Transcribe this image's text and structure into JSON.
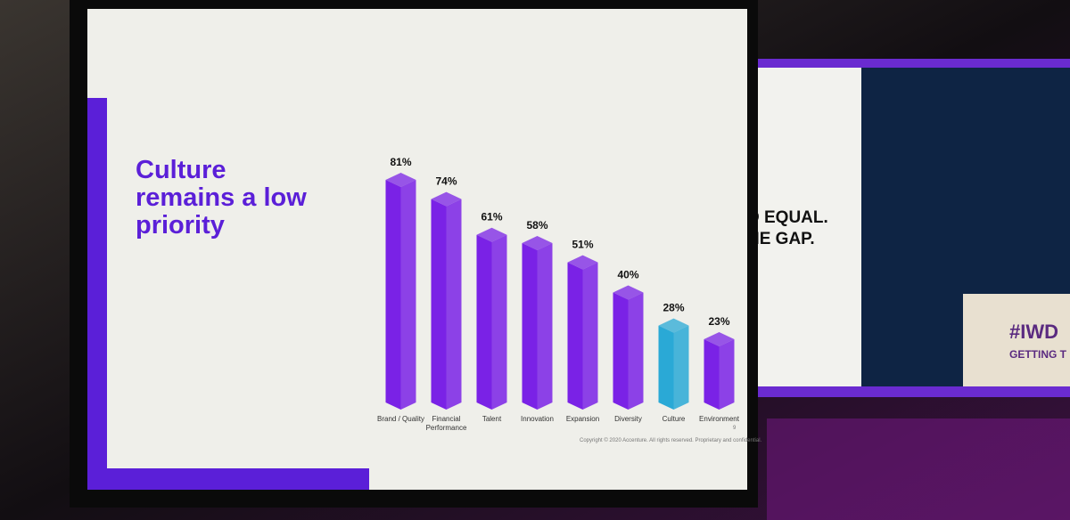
{
  "chart_data": {
    "type": "bar",
    "title": "Culture remains a low priority",
    "categories": [
      "Brand / Quality",
      "Financial Performance",
      "Talent",
      "Innovation",
      "Expansion",
      "Diversity",
      "Culture",
      "Environment"
    ],
    "values": [
      81,
      74,
      61,
      58,
      51,
      40,
      28,
      23
    ],
    "value_labels": [
      "81%",
      "74%",
      "61%",
      "58%",
      "51%",
      "40%",
      "28%",
      "23%"
    ],
    "colors": [
      "#7a22e6",
      "#7a22e6",
      "#7a22e6",
      "#7a22e6",
      "#7a22e6",
      "#7a22e6",
      "#2aa9d6",
      "#7a22e6"
    ],
    "footer": "Copyright © 2020 Accenture. All rights reserved. Proprietary and confidential.",
    "page_number": "9"
  },
  "side_screen": {
    "headline_1": "D EQUAL.",
    "headline_2": "HE GAP.",
    "podium_1": "#IWD",
    "podium_2": "GETTING T"
  }
}
